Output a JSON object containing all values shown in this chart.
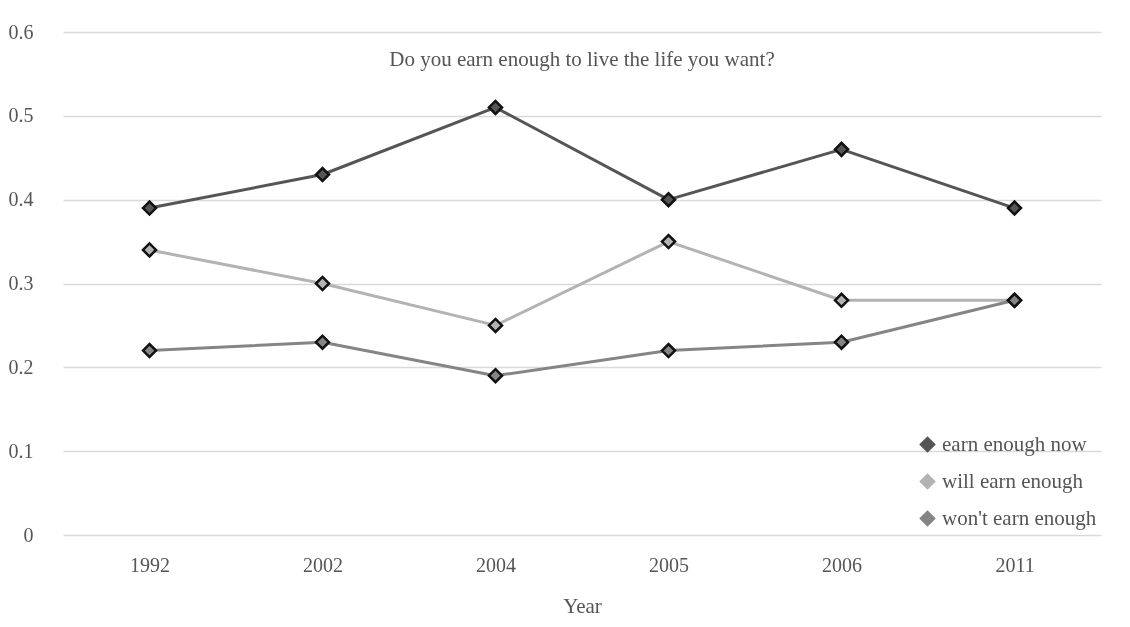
{
  "chart_data": {
    "type": "line",
    "title": "Do you earn enough to live the life you want?",
    "xlabel": "Year",
    "categories": [
      "1992",
      "2002",
      "2004",
      "2005",
      "2006",
      "2011"
    ],
    "series": [
      {
        "name": "earn enough now",
        "color": "#555555",
        "values": [
          0.39,
          0.43,
          0.51,
          0.4,
          0.46,
          0.39
        ]
      },
      {
        "name": "will earn enough",
        "color": "#b3b3b3",
        "values": [
          0.34,
          0.3,
          0.25,
          0.35,
          0.28,
          0.28
        ]
      },
      {
        "name": "won't earn enough",
        "color": "#858585",
        "values": [
          0.22,
          0.23,
          0.19,
          0.22,
          0.23,
          0.28
        ]
      }
    ],
    "ylim": [
      0,
      0.6
    ],
    "yticks": [
      0,
      0.1,
      0.2,
      0.3,
      0.4,
      0.5,
      0.6
    ],
    "grid": "y",
    "legend": "bottom right",
    "marker": "diamond",
    "line_style": "solid"
  }
}
